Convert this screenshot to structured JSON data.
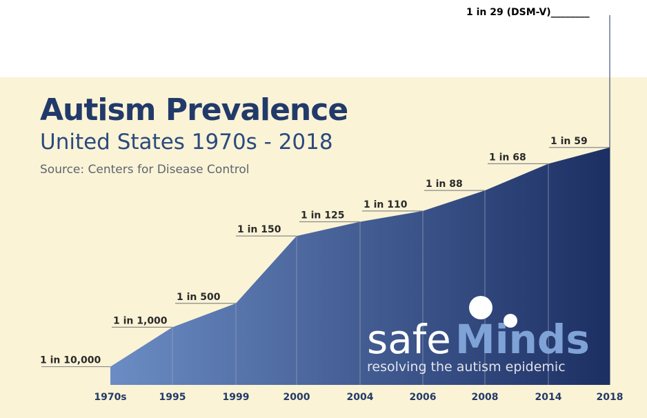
{
  "title": "Autism Prevalence",
  "subtitle": "United States 1970s - 2018",
  "source": "Source: Centers for Disease Control",
  "top_annotation": "1 in 29 (DSM-V)________",
  "logo": {
    "word_plain": "safe",
    "word_accent": "Minds",
    "tagline": "resolving the autism epidemic"
  },
  "colors": {
    "background": "#faf3d6",
    "area_light": "#6b8cc4",
    "area_dark": "#1c2f63",
    "title": "#223a6a",
    "logo_accent": "#7fa3d6"
  },
  "chart_data": {
    "type": "area",
    "title": "Autism Prevalence",
    "subtitle": "United States 1970s - 2018",
    "categories": [
      "1970s",
      "1995",
      "1999",
      "2000",
      "2004",
      "2006",
      "2008",
      "2014",
      "2018"
    ],
    "labels": [
      "1 in 10,000",
      "1 in 1,000",
      "1 in 500",
      "1 in 150",
      "1 in 125",
      "1 in 110",
      "1 in 88",
      "1 in 68",
      "1 in 59"
    ],
    "denominators": [
      10000,
      1000,
      500,
      150,
      125,
      110,
      88,
      68,
      59
    ]
  }
}
